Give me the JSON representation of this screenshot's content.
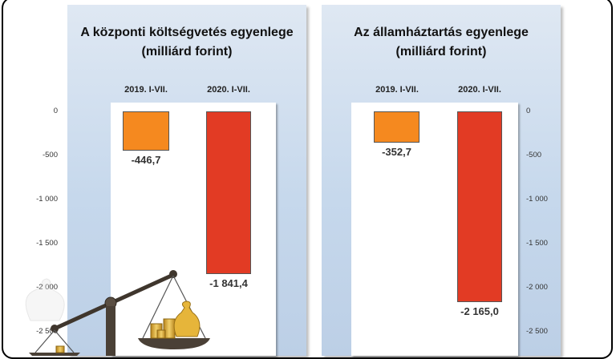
{
  "colors": {
    "bar_2019": "#f5891f",
    "bar_2020": "#e23b24",
    "gold": "#e6b53a",
    "scale_body": "#4a4036"
  },
  "chart_data": [
    {
      "type": "bar",
      "title": "A központi költségvetés egyenlege",
      "subtitle": "(milliárd forint)",
      "categories": [
        "2019. I-VII.",
        "2020. I-VII."
      ],
      "values": [
        -446.7,
        -1841.4
      ],
      "value_labels": [
        "-446,7",
        "-1 841,4"
      ],
      "ylim": [
        -2500,
        0
      ],
      "yticks": [
        0,
        -500,
        -1000,
        -1500,
        -2000,
        -2500
      ],
      "ytick_labels": [
        "0",
        "-500",
        "-1 000",
        "-1 500",
        "-2 000",
        "-2 500"
      ],
      "axis_side": "left",
      "grid": false
    },
    {
      "type": "bar",
      "title": "Az államháztartás egyenlege",
      "subtitle": "(milliárd forint)",
      "categories": [
        "2019. I-VII.",
        "2020. I-VII."
      ],
      "values": [
        -352.7,
        -2165.0
      ],
      "value_labels": [
        "-352,7",
        "-2 165,0"
      ],
      "ylim": [
        -2500,
        0
      ],
      "yticks": [
        0,
        -500,
        -1000,
        -1500,
        -2000,
        -2500
      ],
      "ytick_labels": [
        "0",
        "-500",
        "-1 000",
        "-1 500",
        "-2 000",
        "-2 500"
      ],
      "axis_side": "right",
      "grid": false
    }
  ]
}
